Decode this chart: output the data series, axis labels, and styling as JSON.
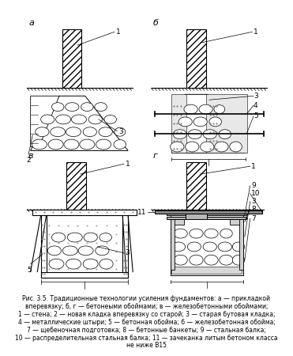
{
  "background_color": "#ffffff",
  "figure_width": 3.71,
  "figure_height": 4.5,
  "dpi": 100,
  "caption_lines": [
    "Рис. 3.5. Традиционные технологии усиления фундаментов: а — прикладкой",
    "вперевязку; б, г — бетонеыми обоймами; в — железобетонными обоймами;",
    "1 — стена; 2 — новая кладка вперевязку со старой; 3 — старая бутовая кладка;",
    "4 — металлические штыри; 5 — бетонная обойма; 6 — железобетонная обойма;",
    "7 — щебеночная подготовка; 8 — бетонные банкеты; 9 — стальная балка;",
    "10 — распределительная стальная балка; 11 — зачеканка литым бетоном класса",
    "не ниже B15"
  ],
  "label_fontsize": 5.5,
  "sublabel_fontsize": 6.5,
  "line_color": "#000000"
}
